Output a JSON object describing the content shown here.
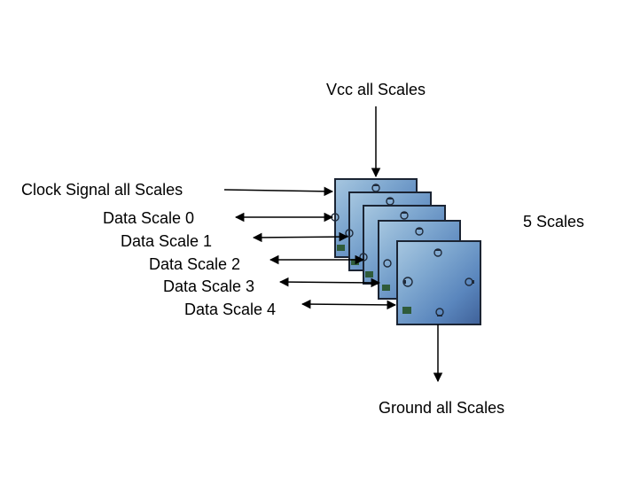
{
  "labels": {
    "vcc": "Vcc all Scales",
    "clock": "Clock Signal all Scales",
    "data0": "Data Scale 0",
    "data1": "Data Scale 1",
    "data2": "Data Scale 2",
    "data3": "Data Scale 3",
    "data4": "Data Scale 4",
    "count": "5 Scales",
    "ground": "Ground all Scales"
  },
  "colors": {
    "board_top": "#8fb6d6",
    "board_mid": "#5b86b8",
    "board_bottom": "#3d5f96",
    "board_border": "#1b2433",
    "arrow": "#000000"
  },
  "icons": [
    "connector-pad-icon",
    "led-icon"
  ]
}
